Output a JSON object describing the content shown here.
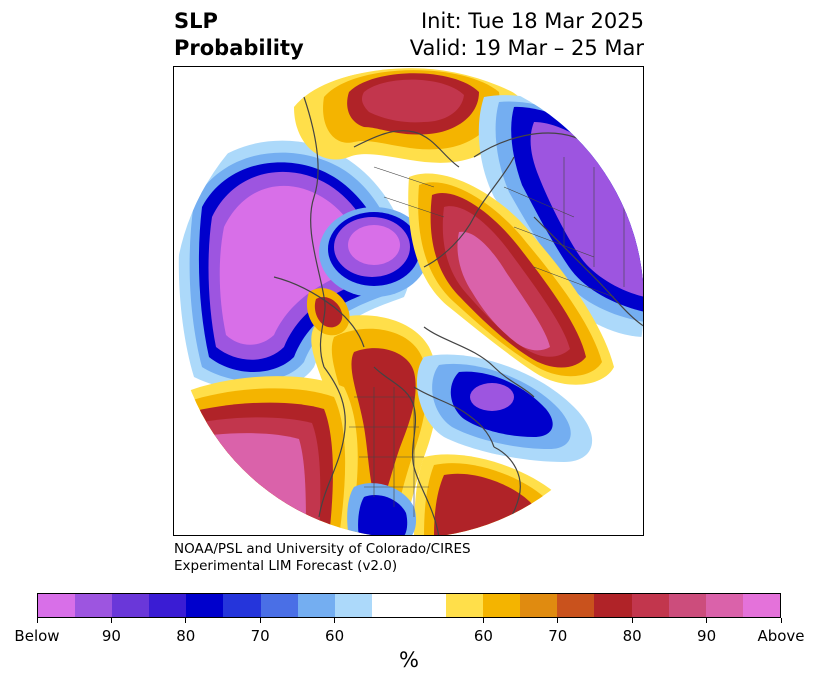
{
  "title": {
    "left_line1": "SLP",
    "left_line2": "Probability",
    "right_line1": "Init: Tue 18 Mar 2025",
    "right_line2": "Valid: 19 Mar – 25 Mar"
  },
  "credit": {
    "line1": "NOAA/PSL and University of Colorado/CIRES",
    "line2": "Experimental LIM Forecast (v2.0)"
  },
  "colorbar": {
    "unit": "%",
    "colors": [
      "#d86fe8",
      "#9d55e0",
      "#6a37d9",
      "#3a1cd4",
      "#0000cc",
      "#2535db",
      "#4a6fe6",
      "#74aef1",
      "#acd9fa",
      "#ffffff",
      "#ffffff",
      "#ffdf4a",
      "#f4b400",
      "#e08b10",
      "#c9521d",
      "#b02328",
      "#c2364d",
      "#cc4d7c",
      "#da62aa",
      "#e472da"
    ],
    "labels": [
      "Below",
      "90",
      "80",
      "70",
      "60",
      "60",
      "70",
      "80",
      "90",
      "Above"
    ]
  },
  "map": {
    "colors": {
      "below_strong": "#d86fe8",
      "below_mid": "#9d55e0",
      "below_blue": "#0000cc",
      "below_light": "#74aef1",
      "below_pale": "#acd9fa",
      "above_yellow": "#ffdf4a",
      "above_orange": "#f4b400",
      "above_red": "#b02328",
      "above_rose": "#c2364d",
      "above_pink": "#da62aa",
      "coast": "#444444"
    }
  }
}
